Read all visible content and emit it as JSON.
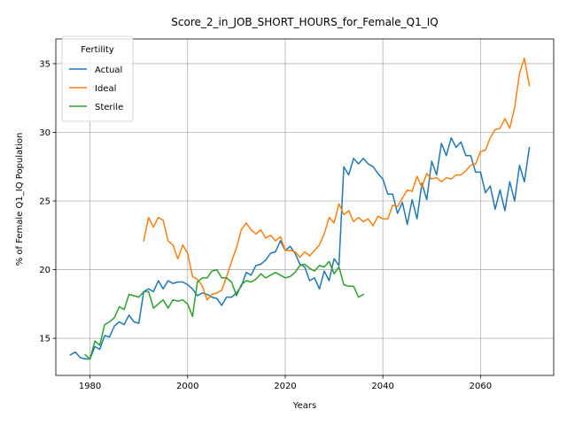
{
  "chart_data": {
    "type": "line",
    "title": "Score_2_in_JOB_SHORT_HOURS_for_Female_Q1_IQ",
    "xlabel": "Years",
    "ylabel": "% of Female Q1_IQ Population",
    "xlim": [
      1973,
      2075
    ],
    "ylim": [
      12.3,
      36.8
    ],
    "xticks": [
      1980,
      2000,
      2020,
      2040,
      2060
    ],
    "yticks": [
      15,
      20,
      25,
      30,
      35
    ],
    "grid": true,
    "legend": {
      "title": "Fertility",
      "placement": "top-left"
    },
    "series": [
      {
        "name": "Actual",
        "color": "#1f77b4",
        "x": [
          1976,
          1977,
          1978,
          1979,
          1980,
          1981,
          1982,
          1983,
          1984,
          1985,
          1986,
          1987,
          1988,
          1989,
          1990,
          1991,
          1992,
          1993,
          1994,
          1995,
          1996,
          1997,
          1998,
          1999,
          2000,
          2001,
          2002,
          2003,
          2004,
          2005,
          2006,
          2007,
          2008,
          2009,
          2010,
          2011,
          2012,
          2013,
          2014,
          2015,
          2016,
          2017,
          2018,
          2019,
          2020,
          2021,
          2022,
          2023,
          2024,
          2025,
          2026,
          2027,
          2028,
          2029,
          2030,
          2031,
          2032,
          2033,
          2034,
          2035,
          2036,
          2037,
          2038,
          2039,
          2040,
          2041,
          2042,
          2043,
          2044,
          2045,
          2046,
          2047,
          2048,
          2049,
          2050,
          2051,
          2052,
          2053,
          2054,
          2055,
          2056,
          2057,
          2058,
          2059,
          2060,
          2061,
          2062,
          2063,
          2064,
          2065,
          2066,
          2067,
          2068,
          2069,
          2070
        ],
        "values": [
          13.8,
          14.0,
          13.6,
          13.5,
          13.5,
          14.4,
          14.2,
          15.2,
          15.1,
          15.9,
          16.2,
          16.0,
          16.7,
          16.2,
          16.1,
          18.4,
          18.6,
          18.4,
          19.2,
          18.6,
          19.2,
          19.0,
          19.1,
          19.1,
          18.9,
          18.6,
          18.1,
          18.3,
          18.2,
          18.0,
          17.9,
          17.4,
          18.0,
          18.0,
          18.3,
          18.8,
          19.8,
          19.6,
          20.3,
          20.4,
          20.7,
          21.2,
          21.3,
          22.1,
          21.4,
          21.7,
          21.2,
          20.4,
          20.2,
          19.2,
          19.4,
          18.6,
          19.9,
          19.2,
          20.8,
          20.3,
          27.5,
          26.9,
          28.1,
          27.7,
          28.1,
          27.7,
          27.5,
          27.0,
          26.6,
          25.5,
          25.5,
          24.1,
          24.9,
          23.3,
          25.1,
          23.7,
          26.3,
          25.1,
          27.9,
          26.9,
          29.2,
          28.3,
          29.6,
          28.9,
          29.3,
          28.3,
          28.3,
          27.1,
          27.1,
          25.6,
          26.1,
          24.4,
          25.8,
          24.3,
          26.4,
          25.0,
          27.6,
          26.4,
          28.9
        ]
      },
      {
        "name": "Ideal",
        "color": "#ff7f0e",
        "x": [
          1991,
          1992,
          1993,
          1994,
          1995,
          1996,
          1997,
          1998,
          1999,
          2000,
          2001,
          2002,
          2003,
          2004,
          2005,
          2006,
          2007,
          2008,
          2009,
          2010,
          2011,
          2012,
          2013,
          2014,
          2015,
          2016,
          2017,
          2018,
          2019,
          2020,
          2021,
          2022,
          2023,
          2024,
          2025,
          2026,
          2027,
          2028,
          2029,
          2030,
          2031,
          2032,
          2033,
          2034,
          2035,
          2036,
          2037,
          2038,
          2039,
          2040,
          2041,
          2042,
          2043,
          2044,
          2045,
          2046,
          2047,
          2048,
          2049,
          2050,
          2051,
          2052,
          2053,
          2054,
          2055,
          2056,
          2057,
          2058,
          2059,
          2060,
          2061,
          2062,
          2063,
          2064,
          2065,
          2066,
          2067,
          2068,
          2069,
          2070
        ],
        "values": [
          22.1,
          23.8,
          23.1,
          23.8,
          23.6,
          22.1,
          21.8,
          20.8,
          21.8,
          21.2,
          19.5,
          19.3,
          18.8,
          17.8,
          18.2,
          18.3,
          18.5,
          19.5,
          20.6,
          21.6,
          22.9,
          23.4,
          22.9,
          22.6,
          22.9,
          22.3,
          22.5,
          22.1,
          22.4,
          21.4,
          21.4,
          21.3,
          20.9,
          21.3,
          21.0,
          21.4,
          21.8,
          22.6,
          23.8,
          23.4,
          24.8,
          24.0,
          24.3,
          23.5,
          23.8,
          23.5,
          23.7,
          23.2,
          23.9,
          23.7,
          23.7,
          24.7,
          24.6,
          25.2,
          25.8,
          25.7,
          26.8,
          26.0,
          27.0,
          26.6,
          26.7,
          26.4,
          26.7,
          26.6,
          26.9,
          26.9,
          27.2,
          27.6,
          27.7,
          28.6,
          28.7,
          29.6,
          30.2,
          30.3,
          31.0,
          30.3,
          31.8,
          34.3,
          35.4,
          33.4
        ]
      },
      {
        "name": "Sterile",
        "color": "#2ca02c",
        "x": [
          1979,
          1980,
          1981,
          1982,
          1983,
          1984,
          1985,
          1986,
          1987,
          1988,
          1989,
          1990,
          1991,
          1992,
          1993,
          1994,
          1995,
          1996,
          1997,
          1998,
          1999,
          2000,
          2001,
          2002,
          2003,
          2004,
          2005,
          2006,
          2007,
          2008,
          2009,
          2010,
          2011,
          2012,
          2013,
          2014,
          2015,
          2016,
          2017,
          2018,
          2019,
          2020,
          2021,
          2022,
          2023,
          2024,
          2025,
          2026,
          2027,
          2028,
          2029,
          2030,
          2031,
          2032,
          2033,
          2034,
          2035,
          2036
        ],
        "values": [
          13.8,
          13.5,
          14.8,
          14.5,
          16.0,
          16.2,
          16.5,
          17.3,
          17.1,
          18.2,
          18.1,
          18.0,
          18.4,
          18.4,
          17.2,
          17.5,
          17.8,
          17.2,
          17.8,
          17.7,
          17.8,
          17.5,
          16.6,
          19.1,
          19.4,
          19.4,
          19.9,
          20.0,
          19.4,
          19.4,
          19.1,
          18.1,
          18.9,
          19.2,
          19.1,
          19.3,
          19.7,
          19.4,
          19.6,
          19.8,
          19.6,
          19.4,
          19.5,
          19.8,
          20.3,
          20.4,
          20.1,
          19.9,
          20.3,
          20.2,
          20.6,
          19.7,
          20.2,
          18.9,
          18.8,
          18.8,
          18.0,
          18.2
        ]
      }
    ]
  }
}
